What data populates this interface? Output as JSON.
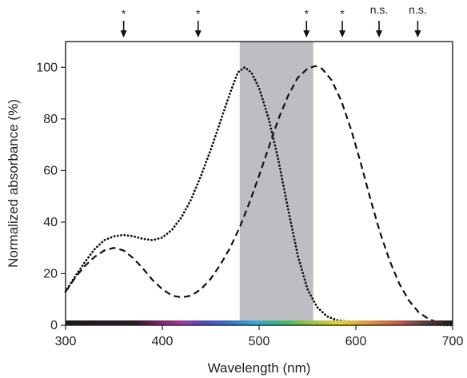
{
  "chart_data": {
    "type": "line",
    "xlabel": "Wavelength (nm)",
    "ylabel": "Normalized absorbance (%)",
    "xlim": [
      300,
      700
    ],
    "ylim": [
      0,
      110
    ],
    "x_ticks": [
      300,
      400,
      500,
      600,
      700
    ],
    "y_ticks": [
      0,
      20,
      40,
      60,
      80,
      100
    ],
    "grid": false,
    "shaded_band": {
      "x_start": 480,
      "x_end": 556,
      "color": "#bdbec2"
    },
    "series": [
      {
        "style": "dotted",
        "color": "#111111",
        "points": [
          [
            300,
            13
          ],
          [
            310,
            19
          ],
          [
            320,
            24.5
          ],
          [
            330,
            29.5
          ],
          [
            340,
            33
          ],
          [
            350,
            34.5
          ],
          [
            360,
            35
          ],
          [
            370,
            34.5
          ],
          [
            380,
            33.5
          ],
          [
            390,
            33
          ],
          [
            400,
            34
          ],
          [
            410,
            37
          ],
          [
            420,
            42
          ],
          [
            430,
            49
          ],
          [
            440,
            58
          ],
          [
            450,
            68
          ],
          [
            460,
            79
          ],
          [
            470,
            90
          ],
          [
            478,
            98
          ],
          [
            485,
            100
          ],
          [
            492,
            98
          ],
          [
            500,
            92
          ],
          [
            510,
            80
          ],
          [
            520,
            64
          ],
          [
            530,
            45
          ],
          [
            540,
            27
          ],
          [
            550,
            14
          ],
          [
            560,
            7
          ],
          [
            570,
            3.5
          ],
          [
            580,
            2
          ],
          [
            600,
            1
          ],
          [
            650,
            0.3
          ],
          [
            700,
            0
          ]
        ]
      },
      {
        "style": "dashed",
        "color": "#111111",
        "points": [
          [
            300,
            13
          ],
          [
            310,
            18.5
          ],
          [
            320,
            23
          ],
          [
            330,
            26.5
          ],
          [
            340,
            29
          ],
          [
            350,
            30
          ],
          [
            360,
            29
          ],
          [
            370,
            26
          ],
          [
            380,
            22
          ],
          [
            390,
            17.5
          ],
          [
            400,
            14
          ],
          [
            410,
            11.5
          ],
          [
            420,
            10.8
          ],
          [
            430,
            11.5
          ],
          [
            440,
            14
          ],
          [
            450,
            18
          ],
          [
            460,
            23.5
          ],
          [
            470,
            30
          ],
          [
            480,
            38
          ],
          [
            490,
            47.5
          ],
          [
            500,
            58
          ],
          [
            510,
            69
          ],
          [
            520,
            80
          ],
          [
            530,
            89
          ],
          [
            540,
            96
          ],
          [
            550,
            99.5
          ],
          [
            558,
            100.5
          ],
          [
            565,
            99.5
          ],
          [
            575,
            95
          ],
          [
            585,
            87
          ],
          [
            595,
            76
          ],
          [
            605,
            63
          ],
          [
            615,
            49
          ],
          [
            625,
            36
          ],
          [
            635,
            25
          ],
          [
            645,
            16
          ],
          [
            655,
            9.5
          ],
          [
            665,
            5
          ],
          [
            675,
            2.5
          ],
          [
            685,
            1
          ],
          [
            695,
            0.4
          ],
          [
            700,
            0.2
          ]
        ]
      }
    ],
    "markers": [
      {
        "x": 360,
        "label": "*"
      },
      {
        "x": 437,
        "label": "*"
      },
      {
        "x": 549,
        "label": "*"
      },
      {
        "x": 586,
        "label": "*"
      },
      {
        "x": 624,
        "label": "n.s."
      },
      {
        "x": 664,
        "label": "n.s."
      }
    ]
  }
}
